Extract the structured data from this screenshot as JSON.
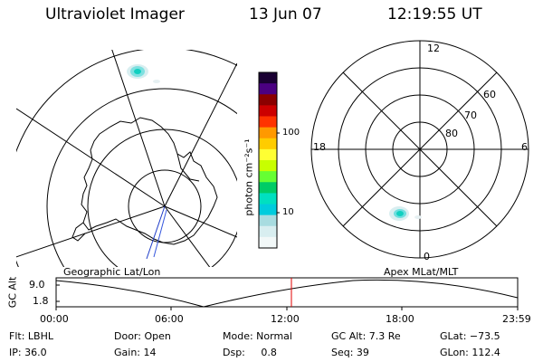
{
  "header": {
    "title": "Ultraviolet Imager",
    "date": "13 Jun 07",
    "time": "12:19:55 UT"
  },
  "color_scale": {
    "title": "photon cm⁻²s⁻¹",
    "ticks": [
      "100",
      "10"
    ],
    "colors": [
      "#1a0033",
      "#4b0082",
      "#8b0000",
      "#cc0000",
      "#ff3300",
      "#ff9900",
      "#ffcc00",
      "#ffff33",
      "#c8ff00",
      "#66ff33",
      "#00cc66",
      "#00e0c0",
      "#00ccdd",
      "#a8dce0",
      "#d8eef0",
      "#f2f8f8"
    ]
  },
  "left_map": {
    "label": "Geographic Lat/Lon"
  },
  "right_map": {
    "label": "Apex MLat/MLT",
    "mlt_labels": {
      "top": "12",
      "left": "18",
      "right": "6",
      "bottom": "0"
    },
    "lat_labels": [
      "60",
      "70",
      "80"
    ]
  },
  "altitude_panel": {
    "axis_label": "GC Alt",
    "ticks": [
      "9.0",
      "1.8"
    ],
    "time_ticks": [
      "00:00",
      "06:00",
      "12:00",
      "18:00",
      "23:59"
    ]
  },
  "info": {
    "row1": [
      "Flt: LBHL",
      "Door: Open",
      "Mode: Normal",
      "GC Alt: 7.3 Re",
      "GLat: −73.5"
    ],
    "row2": [
      "IP: 36.0",
      "Gain: 14",
      "Dsp:     0.8",
      "Seq: 39",
      "GLon: 112.4"
    ]
  }
}
